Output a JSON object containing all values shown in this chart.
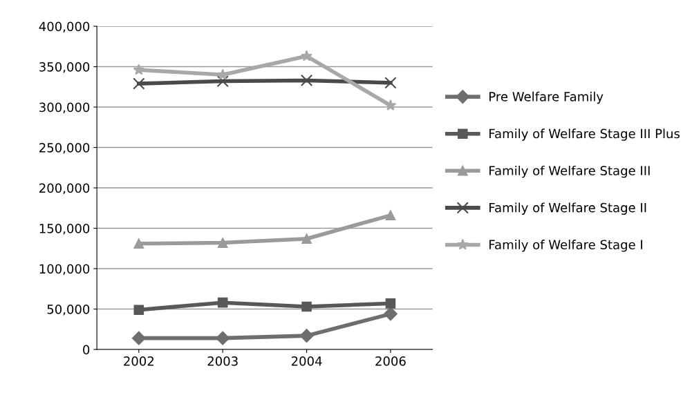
{
  "chart_data": {
    "type": "line",
    "categories": [
      "2002",
      "2003",
      "2004",
      "2006"
    ],
    "series": [
      {
        "name": "Pre Welfare Family",
        "color": "#6e6e6e",
        "marker": "diamond",
        "values": [
          14000,
          14000,
          17000,
          44000
        ]
      },
      {
        "name": "Family of Welfare Stage III Plus",
        "color": "#585858",
        "marker": "square",
        "values": [
          49000,
          58000,
          53000,
          57000
        ]
      },
      {
        "name": "Family of Welfare Stage III",
        "color": "#9a9a9a",
        "marker": "triangle",
        "values": [
          131000,
          132000,
          137000,
          166000
        ]
      },
      {
        "name": "Family of Welfare Stage II",
        "color": "#4a4a4a",
        "marker": "cross",
        "values": [
          329000,
          332000,
          333000,
          330000
        ]
      },
      {
        "name": "Family of Welfare Stage I",
        "color": "#a8a8a8",
        "marker": "star",
        "values": [
          346000,
          340000,
          363000,
          302000
        ]
      }
    ],
    "ylim": [
      0,
      400000
    ],
    "yticks": [
      {
        "value": 0,
        "label": "0"
      },
      {
        "value": 50000,
        "label": "50,000"
      },
      {
        "value": 100000,
        "label": "100,000"
      },
      {
        "value": 150000,
        "label": "150,000"
      },
      {
        "value": 200000,
        "label": "200,000"
      },
      {
        "value": 250000,
        "label": "250,000"
      },
      {
        "value": 300000,
        "label": "300,000"
      },
      {
        "value": 350000,
        "label": "350,000"
      },
      {
        "value": 400000,
        "label": "400,000"
      }
    ],
    "grid": "y",
    "legend": "right"
  }
}
